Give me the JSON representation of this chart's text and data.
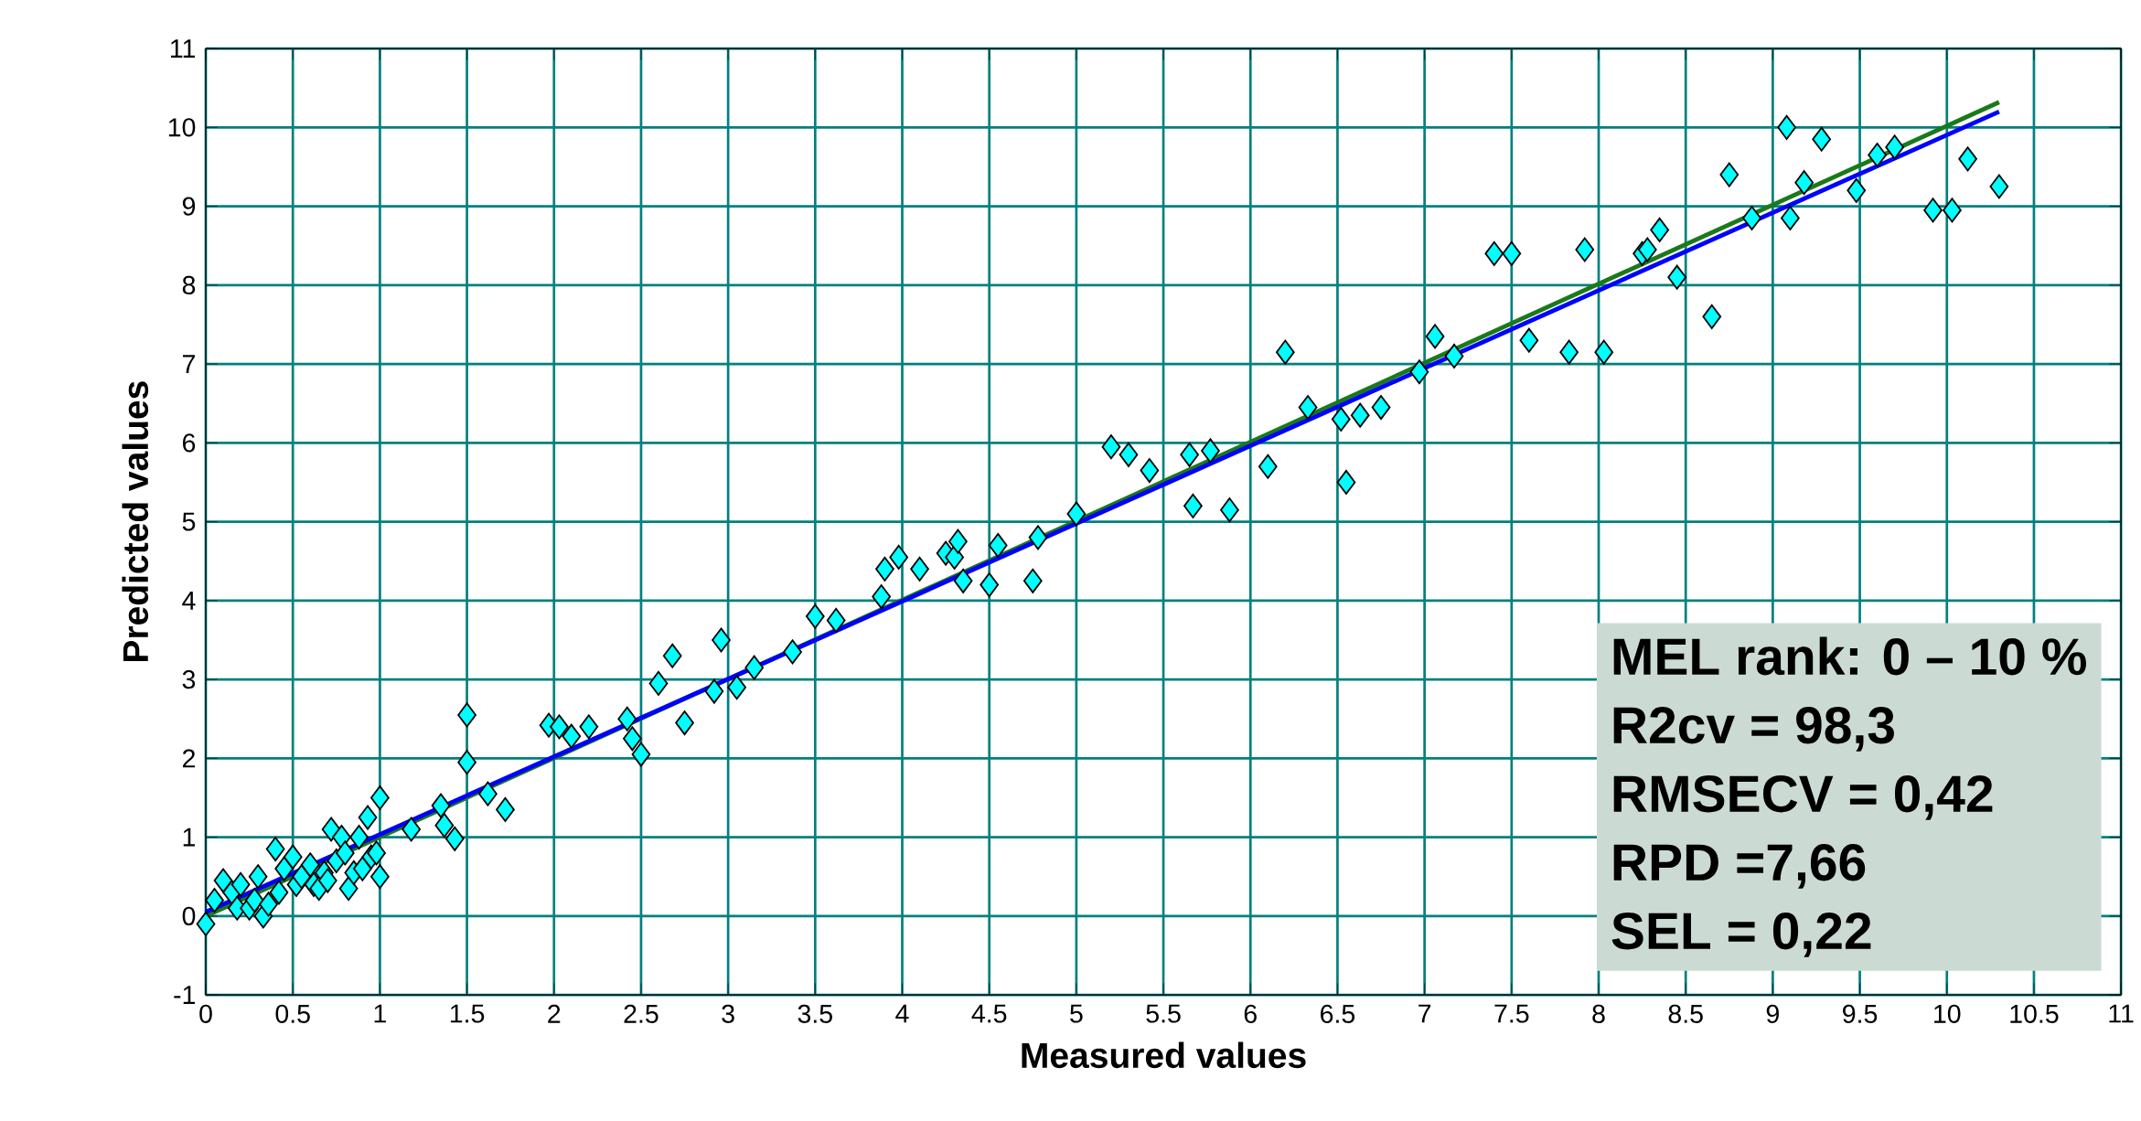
{
  "chart_data": {
    "type": "scatter",
    "xlabel": "Measured values",
    "ylabel": "Predicted values",
    "xlim": [
      0,
      11
    ],
    "ylim": [
      -1,
      11
    ],
    "xticks": [
      0,
      0.5,
      1,
      1.5,
      2,
      2.5,
      3,
      3.5,
      4,
      4.5,
      5,
      5.5,
      6,
      6.5,
      7,
      7.5,
      8,
      8.5,
      9,
      9.5,
      10,
      10.5,
      11
    ],
    "yticks": [
      -1,
      0,
      1,
      2,
      3,
      4,
      5,
      6,
      7,
      8,
      9,
      10,
      11
    ],
    "grid": true,
    "annotations": [
      "MEL rank: 0 – 10 %",
      "R2cv = 98,3",
      "RMSECV = 0,42",
      "RPD =7,66",
      "SEL = 0,22"
    ],
    "series": [
      {
        "color": "#00ffff",
        "marker": "diamond",
        "x": [
          0,
          0.05,
          0.1,
          0.15,
          0.18,
          0.2,
          0.25,
          0.28,
          0.3,
          0.33,
          0.36,
          0.4,
          0.42,
          0.45,
          0.5,
          0.52,
          0.55,
          0.6,
          0.62,
          0.65,
          0.68,
          0.7,
          0.72,
          0.75,
          0.78,
          0.8,
          0.82,
          0.85,
          0.88,
          0.9,
          0.93,
          0.95,
          0.98,
          1.0,
          1.0,
          1.18,
          1.35,
          1.37,
          1.43,
          1.5,
          1.5,
          1.62,
          1.72,
          1.97,
          2.03,
          2.1,
          2.2,
          2.42,
          2.45,
          2.5,
          2.6,
          2.68,
          2.75,
          2.92,
          2.96,
          3.05,
          3.15,
          3.37,
          3.5,
          3.62,
          3.88,
          3.9,
          3.98,
          4.1,
          4.25,
          4.3,
          4.32,
          4.35,
          4.5,
          4.55,
          4.75,
          4.78,
          5.0,
          5.2,
          5.3,
          5.42,
          5.65,
          5.67,
          5.77,
          5.88,
          6.1,
          6.2,
          6.33,
          6.52,
          6.55,
          6.63,
          6.75,
          6.97,
          7.06,
          7.17,
          7.4,
          7.5,
          7.6,
          7.83,
          7.92,
          8.03,
          8.25,
          8.28,
          8.35,
          8.45,
          8.65,
          8.75,
          8.88,
          9.08,
          9.1,
          9.18,
          9.28,
          9.48,
          9.6,
          9.7,
          9.92,
          10.03,
          10.12,
          10.3
        ],
        "values": [
          -0.1,
          0.2,
          0.45,
          0.3,
          0.1,
          0.4,
          0.1,
          0.2,
          0.5,
          0.0,
          0.15,
          0.85,
          0.3,
          0.6,
          0.75,
          0.4,
          0.5,
          0.65,
          0.4,
          0.35,
          0.55,
          0.45,
          1.1,
          0.7,
          1.0,
          0.8,
          0.35,
          0.55,
          1.0,
          0.6,
          1.25,
          0.75,
          0.8,
          0.5,
          1.5,
          1.1,
          1.4,
          1.15,
          0.98,
          2.55,
          1.95,
          1.55,
          1.35,
          2.42,
          2.4,
          2.28,
          2.4,
          2.5,
          2.25,
          2.05,
          2.95,
          3.3,
          2.45,
          2.85,
          3.5,
          2.9,
          3.15,
          3.35,
          3.8,
          3.75,
          4.05,
          4.4,
          4.55,
          4.4,
          4.6,
          4.55,
          4.75,
          4.25,
          4.2,
          4.7,
          4.25,
          4.8,
          5.1,
          5.95,
          5.85,
          5.65,
          5.85,
          5.2,
          5.9,
          5.15,
          5.7,
          7.15,
          6.45,
          6.3,
          5.5,
          6.35,
          6.45,
          6.9,
          7.35,
          7.1,
          8.4,
          8.4,
          7.3,
          7.15,
          8.45,
          7.15,
          8.4,
          8.45,
          8.7,
          8.1,
          7.6,
          9.4,
          8.85,
          10.0,
          8.85,
          9.3,
          9.85,
          9.2,
          9.65,
          9.75,
          8.95,
          8.95,
          9.6,
          9.25
        ]
      },
      {
        "type": "line",
        "marker": "none",
        "color": "#1a7a1a",
        "x": [
          0,
          10.3
        ],
        "values": [
          0.0,
          10.32
        ]
      },
      {
        "type": "line",
        "marker": "none",
        "color": "#0000ff",
        "x": [
          0,
          10.3
        ],
        "values": [
          0.05,
          10.2
        ]
      }
    ]
  }
}
